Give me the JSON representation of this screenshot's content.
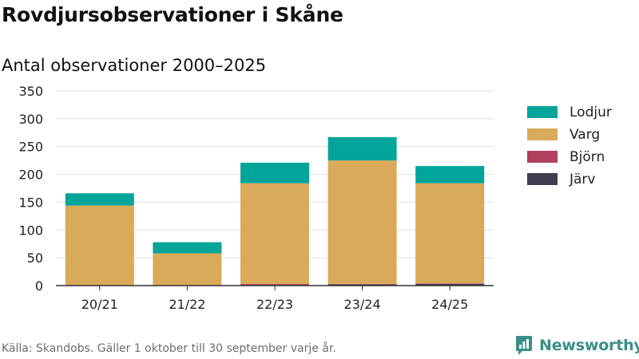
{
  "header": {
    "title": "Rovdjursobservationer i Skåne",
    "subtitle": "Antal observationer 2000–2025"
  },
  "footer": {
    "source": "Källa: Skandobs. Gäller 1 oktober till 30 september varje år.",
    "brand": "Newsworthy"
  },
  "chart_data": {
    "type": "bar",
    "stacked": true,
    "categories": [
      "20/21",
      "21/22",
      "22/23",
      "23/24",
      "24/25"
    ],
    "series": [
      {
        "name": "Järv",
        "color": "#3f3d4f",
        "values": [
          0,
          0,
          1,
          2,
          3
        ]
      },
      {
        "name": "Björn",
        "color": "#b0415e",
        "values": [
          0,
          0,
          2,
          1,
          1
        ]
      },
      {
        "name": "Varg",
        "color": "#d9aa5a",
        "values": [
          144,
          58,
          181,
          222,
          180
        ]
      },
      {
        "name": "Lodjur",
        "color": "#02a59a",
        "values": [
          22,
          20,
          37,
          42,
          31
        ]
      }
    ],
    "legend_order": [
      "Lodjur",
      "Varg",
      "Björn",
      "Järv"
    ],
    "yticks": [
      0,
      50,
      100,
      150,
      200,
      250,
      300,
      350
    ],
    "ylim": [
      0,
      350
    ],
    "grid": true,
    "legend_position": "right"
  }
}
